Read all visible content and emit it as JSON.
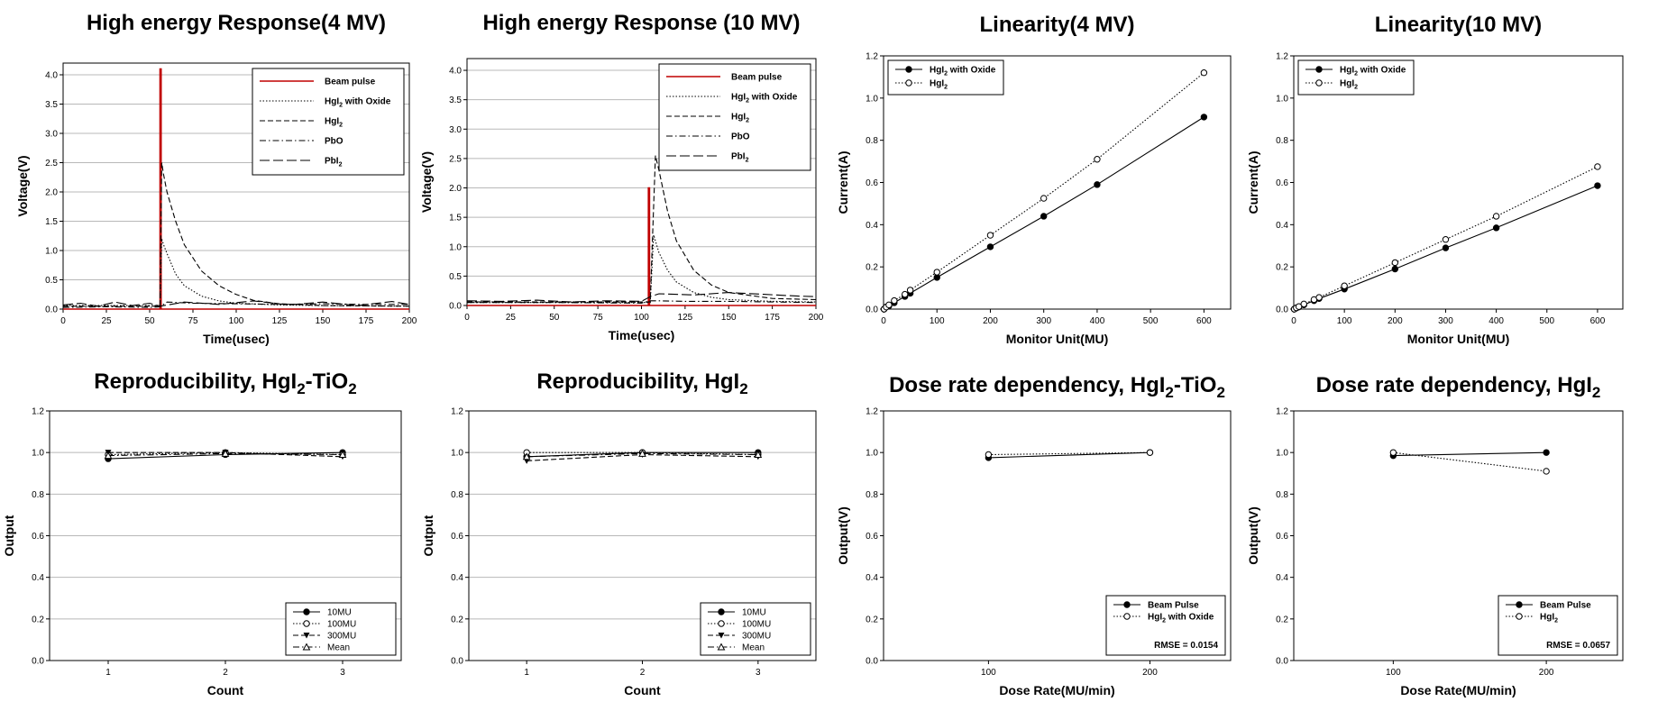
{
  "chart_data": [
    {
      "type": "line",
      "title": "High energy Response(4 MV)",
      "xlabel": "Time(usec)",
      "ylabel": "Voltage(V)",
      "xlim": [
        0,
        200
      ],
      "ylim": [
        0,
        4.2
      ],
      "xticks": [
        0,
        25,
        50,
        75,
        100,
        125,
        150,
        175,
        200
      ],
      "yticks": [
        0.0,
        0.5,
        1.0,
        1.5,
        2.0,
        2.5,
        3.0,
        3.5,
        4.0
      ],
      "grid": true,
      "legend_position": "top-right",
      "series": [
        {
          "name": "Beam pulse",
          "color": "#c00000",
          "style": "solid",
          "x": [
            0,
            56,
            56,
            56.6,
            56.6,
            200
          ],
          "y": [
            0,
            0,
            4.1,
            4.1,
            0,
            0
          ]
        },
        {
          "name": "HgI2 with Oxide",
          "style": "dotted",
          "x": [
            0,
            56,
            57,
            58,
            60,
            65,
            70,
            80,
            90,
            100,
            125,
            150,
            200
          ],
          "y": [
            0.06,
            0.06,
            1.2,
            1.1,
            0.95,
            0.6,
            0.4,
            0.22,
            0.14,
            0.1,
            0.07,
            0.06,
            0.05
          ]
        },
        {
          "name": "HgI2",
          "style": "dashed",
          "x": [
            0,
            56,
            57,
            58,
            60,
            65,
            70,
            80,
            90,
            100,
            110,
            125,
            150,
            200
          ],
          "y": [
            0.05,
            0.05,
            2.5,
            2.3,
            2.0,
            1.5,
            1.1,
            0.65,
            0.4,
            0.25,
            0.15,
            0.09,
            0.06,
            0.05
          ]
        },
        {
          "name": "PbO",
          "style": "dashdot",
          "x": [
            0,
            25,
            50,
            56,
            60,
            75,
            100,
            125,
            150,
            175,
            200
          ],
          "y": [
            0.03,
            0.04,
            0.03,
            0.04,
            0.12,
            0.1,
            0.09,
            0.08,
            0.09,
            0.08,
            0.08
          ]
        },
        {
          "name": "PbI2",
          "style": "longdash",
          "x": [
            0,
            10,
            20,
            30,
            40,
            50,
            56,
            70,
            90,
            110,
            130,
            150,
            170,
            190,
            200
          ],
          "y": [
            0.07,
            0.1,
            0.05,
            0.12,
            0.06,
            0.1,
            0.05,
            0.12,
            0.08,
            0.14,
            0.07,
            0.12,
            0.06,
            0.13,
            0.08
          ]
        }
      ]
    },
    {
      "type": "line",
      "title": "High energy Response (10 MV)",
      "xlabel": "Time(usec)",
      "ylabel": "Voltage(V)",
      "xlim": [
        0,
        200
      ],
      "ylim": [
        0,
        4.2
      ],
      "xticks": [
        0,
        25,
        50,
        75,
        100,
        125,
        150,
        175,
        200
      ],
      "yticks": [
        0.0,
        0.5,
        1.0,
        1.5,
        2.0,
        2.5,
        3.0,
        3.5,
        4.0
      ],
      "grid": true,
      "legend_position": "top-right",
      "series": [
        {
          "name": "Beam pulse",
          "color": "#c00000",
          "style": "solid",
          "x": [
            0,
            104,
            104,
            104.6,
            104.6,
            200
          ],
          "y": [
            0,
            0,
            2.0,
            2.0,
            0,
            0
          ]
        },
        {
          "name": "HgI2 with Oxide",
          "style": "dotted",
          "x": [
            0,
            105,
            107,
            110,
            115,
            120,
            130,
            140,
            150,
            175,
            200
          ],
          "y": [
            0.05,
            0.05,
            1.2,
            0.9,
            0.6,
            0.4,
            0.22,
            0.14,
            0.1,
            0.07,
            0.06
          ]
        },
        {
          "name": "HgI2",
          "style": "dashed",
          "x": [
            0,
            105,
            108,
            110,
            115,
            120,
            130,
            140,
            150,
            175,
            200
          ],
          "y": [
            0.06,
            0.06,
            2.55,
            2.3,
            1.6,
            1.1,
            0.6,
            0.35,
            0.22,
            0.12,
            0.1
          ]
        },
        {
          "name": "PbO",
          "style": "dashdot",
          "x": [
            0,
            50,
            100,
            105,
            110,
            125,
            150,
            175,
            200
          ],
          "y": [
            0.05,
            0.05,
            0.04,
            0.08,
            0.08,
            0.07,
            0.07,
            0.06,
            0.05
          ]
        },
        {
          "name": "PbI2",
          "style": "longdash",
          "x": [
            0,
            20,
            40,
            60,
            80,
            100,
            105,
            110,
            130,
            150,
            170,
            190,
            200
          ],
          "y": [
            0.08,
            0.07,
            0.09,
            0.06,
            0.08,
            0.07,
            0.15,
            0.2,
            0.18,
            0.22,
            0.19,
            0.16,
            0.15
          ]
        }
      ]
    },
    {
      "type": "line",
      "title": "Linearity(4 MV)",
      "xlabel": "Monitor Unit(MU)",
      "ylabel": "Current(A)",
      "xlim": [
        0,
        650
      ],
      "ylim": [
        0,
        1.2
      ],
      "xticks": [
        0,
        100,
        200,
        300,
        400,
        500,
        600
      ],
      "yticks": [
        0.0,
        0.2,
        0.4,
        0.6,
        0.8,
        1.0,
        1.2
      ],
      "grid": false,
      "legend_position": "top-left",
      "series": [
        {
          "name": "HgI2 with Oxide",
          "marker": "filled-circle",
          "style": "solid",
          "x": [
            1,
            5,
            10,
            20,
            40,
            50,
            100,
            200,
            300,
            400,
            600
          ],
          "y": [
            0.0,
            0.01,
            0.015,
            0.03,
            0.06,
            0.075,
            0.15,
            0.295,
            0.44,
            0.59,
            0.91
          ]
        },
        {
          "name": "HgI2",
          "marker": "open-circle",
          "style": "dotted",
          "x": [
            1,
            5,
            10,
            20,
            40,
            50,
            100,
            200,
            300,
            400,
            600
          ],
          "y": [
            0.0,
            0.01,
            0.02,
            0.04,
            0.07,
            0.09,
            0.175,
            0.35,
            0.525,
            0.71,
            1.12
          ]
        }
      ]
    },
    {
      "type": "line",
      "title": "Linearity(10 MV)",
      "xlabel": "Monitor Unit(MU)",
      "ylabel": "Current(A)",
      "xlim": [
        0,
        650
      ],
      "ylim": [
        0,
        1.2
      ],
      "xticks": [
        0,
        100,
        200,
        300,
        400,
        500,
        600
      ],
      "yticks": [
        0.0,
        0.2,
        0.4,
        0.6,
        0.8,
        1.0,
        1.2
      ],
      "grid": false,
      "legend_position": "top-left",
      "series": [
        {
          "name": "HgI2 with Oxide",
          "marker": "filled-circle",
          "style": "solid",
          "x": [
            1,
            5,
            10,
            20,
            40,
            50,
            100,
            200,
            300,
            400,
            600
          ],
          "y": [
            0.0,
            0.005,
            0.01,
            0.02,
            0.04,
            0.05,
            0.095,
            0.19,
            0.29,
            0.385,
            0.585
          ]
        },
        {
          "name": "HgI2",
          "marker": "open-circle",
          "style": "dotted",
          "x": [
            1,
            5,
            10,
            20,
            40,
            50,
            100,
            200,
            300,
            400,
            600
          ],
          "y": [
            0.0,
            0.006,
            0.012,
            0.024,
            0.045,
            0.055,
            0.11,
            0.22,
            0.33,
            0.44,
            0.675
          ]
        }
      ]
    },
    {
      "type": "line",
      "title": "Reproducibility, HgI2-TiO2",
      "xlabel": "Count",
      "ylabel": "Output",
      "xlim": [
        0.5,
        3.5
      ],
      "ylim": [
        0,
        1.2
      ],
      "xticks": [
        1,
        2,
        3
      ],
      "yticks": [
        0.0,
        0.2,
        0.4,
        0.6,
        0.8,
        1.0,
        1.2
      ],
      "grid": true,
      "legend_position": "bottom-right",
      "series": [
        {
          "name": "10MU",
          "marker": "filled-circle",
          "style": "solid",
          "x": [
            1,
            2,
            3
          ],
          "y": [
            0.97,
            0.99,
            1.0
          ]
        },
        {
          "name": "100MU",
          "marker": "open-circle",
          "style": "dotted",
          "x": [
            1,
            2,
            3
          ],
          "y": [
            0.99,
            1.0,
            0.99
          ]
        },
        {
          "name": "300MU",
          "marker": "filled-triangle-down",
          "style": "dashed",
          "x": [
            1,
            2,
            3
          ],
          "y": [
            1.0,
            1.0,
            0.98
          ]
        },
        {
          "name": "Mean",
          "marker": "open-triangle-up",
          "style": "dashdot",
          "x": [
            1,
            2,
            3
          ],
          "y": [
            0.985,
            0.995,
            0.99
          ]
        }
      ]
    },
    {
      "type": "line",
      "title": "Reproducibility, HgI2",
      "xlabel": "Count",
      "ylabel": "Output",
      "xlim": [
        0.5,
        3.5
      ],
      "ylim": [
        0,
        1.2
      ],
      "xticks": [
        1,
        2,
        3
      ],
      "yticks": [
        0.0,
        0.2,
        0.4,
        0.6,
        0.8,
        1.0,
        1.2
      ],
      "grid": true,
      "legend_position": "bottom-right",
      "series": [
        {
          "name": "10MU",
          "marker": "filled-circle",
          "style": "solid",
          "x": [
            1,
            2,
            3
          ],
          "y": [
            0.98,
            1.0,
            1.0
          ]
        },
        {
          "name": "100MU",
          "marker": "open-circle",
          "style": "dotted",
          "x": [
            1,
            2,
            3
          ],
          "y": [
            1.0,
            1.0,
            0.99
          ]
        },
        {
          "name": "300MU",
          "marker": "filled-triangle-down",
          "style": "dashed",
          "x": [
            1,
            2,
            3
          ],
          "y": [
            0.96,
            0.99,
            0.98
          ]
        },
        {
          "name": "Mean",
          "marker": "open-triangle-up",
          "style": "dashdot",
          "x": [
            1,
            2,
            3
          ],
          "y": [
            0.98,
            0.995,
            0.99
          ]
        }
      ]
    },
    {
      "type": "line",
      "title": "Dose rate dependency, HgI2-TiO2",
      "xlabel": "Dose Rate(MU/min)",
      "ylabel": "Output(V)",
      "xlim": [
        35,
        250
      ],
      "ylim": [
        0,
        1.2
      ],
      "xticks": [
        100,
        200
      ],
      "yticks": [
        0.0,
        0.2,
        0.4,
        0.6,
        0.8,
        1.0,
        1.2
      ],
      "grid": false,
      "legend_position": "bottom-right",
      "annotation": "RMSE = 0.0154",
      "series": [
        {
          "name": "Beam Pulse",
          "marker": "filled-circle",
          "style": "solid",
          "x": [
            100,
            200
          ],
          "y": [
            0.975,
            1.0
          ]
        },
        {
          "name": "HgI2 with Oxide",
          "marker": "open-circle",
          "style": "dotted",
          "x": [
            100,
            200
          ],
          "y": [
            0.99,
            1.0
          ]
        }
      ]
    },
    {
      "type": "line",
      "title": "Dose rate dependency, HgI2",
      "xlabel": "Dose Rate(MU/min)",
      "ylabel": "Output(V)",
      "xlim": [
        35,
        250
      ],
      "ylim": [
        0,
        1.2
      ],
      "xticks": [
        100,
        200
      ],
      "yticks": [
        0.0,
        0.2,
        0.4,
        0.6,
        0.8,
        1.0,
        1.2
      ],
      "grid": false,
      "legend_position": "bottom-right",
      "annotation": "RMSE = 0.0657",
      "series": [
        {
          "name": "Beam Pulse",
          "marker": "filled-circle",
          "style": "solid",
          "x": [
            100,
            200
          ],
          "y": [
            0.985,
            1.0
          ]
        },
        {
          "name": "HgI2",
          "marker": "open-circle",
          "style": "dotted",
          "x": [
            100,
            200
          ],
          "y": [
            1.0,
            0.91
          ]
        }
      ]
    }
  ]
}
